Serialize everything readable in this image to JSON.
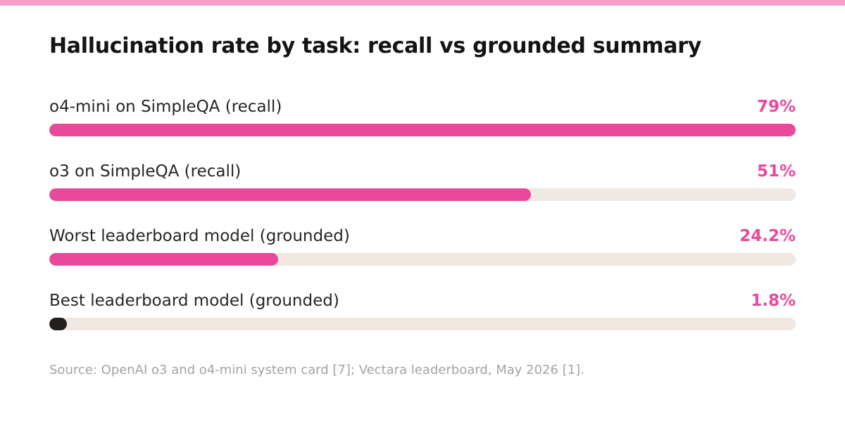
{
  "colors": {
    "accent": "#e8499b",
    "stripe": "#f79ecb",
    "track": "#f1e8e2",
    "dark_bar": "#231f1f",
    "source_text": "#a3a3a3"
  },
  "chart_data": {
    "type": "bar",
    "orientation": "horizontal",
    "title": "Hallucination rate by task: recall vs grounded summary",
    "categories": [
      "o4-mini on SimpleQA (recall)",
      "o3 on SimpleQA (recall)",
      "Worst leaderboard model (grounded)",
      "Best leaderboard model (grounded)"
    ],
    "values": [
      79,
      51,
      24.2,
      1.8
    ],
    "value_labels": [
      "79%",
      "51%",
      "24.2%",
      "1.8%"
    ],
    "bar_colors": [
      "#e8499b",
      "#e8499b",
      "#e8499b",
      "#231f1f"
    ],
    "value_label_color": "#e8499b",
    "xlim": [
      0,
      79
    ],
    "grid": false,
    "legend": "none",
    "source": "Source: OpenAI o3 and o4-mini system card [7]; Vectara leaderboard, May 2026 [1]."
  }
}
